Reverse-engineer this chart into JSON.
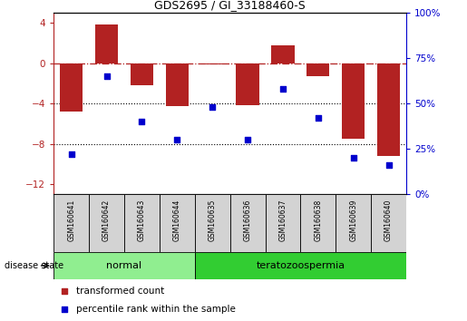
{
  "title": "GDS2695 / GI_33188460-S",
  "samples": [
    "GSM160641",
    "GSM160642",
    "GSM160643",
    "GSM160644",
    "GSM160635",
    "GSM160636",
    "GSM160637",
    "GSM160638",
    "GSM160639",
    "GSM160640"
  ],
  "bar_values": [
    -4.8,
    3.8,
    -2.2,
    -4.3,
    -0.15,
    -4.2,
    1.8,
    -1.3,
    -7.5,
    -9.2
  ],
  "dot_values": [
    22,
    65,
    40,
    30,
    48,
    30,
    58,
    42,
    20,
    16
  ],
  "ylim_left": [
    -13,
    5
  ],
  "ylim_right": [
    0,
    100
  ],
  "yticks_left": [
    -12,
    -8,
    -4,
    0,
    4
  ],
  "yticks_right": [
    0,
    25,
    50,
    75,
    100
  ],
  "bar_color": "#b22222",
  "dot_color": "#0000cd",
  "hline_y": 0,
  "dotted_lines": [
    -4,
    -8
  ],
  "groups": [
    {
      "label": "normal",
      "start": 0,
      "end": 4,
      "color": "#90ee90"
    },
    {
      "label": "teratozoospermia",
      "start": 4,
      "end": 10,
      "color": "#32cd32"
    }
  ],
  "disease_state_label": "disease state",
  "legend_bar_label": "transformed count",
  "legend_dot_label": "percentile rank within the sample",
  "right_axis_color": "#0000cd",
  "left_axis_color": "#b22222",
  "right_ytick_labels": [
    "0%",
    "25%",
    "50%",
    "75%",
    "100%"
  ],
  "right_ytick_values": [
    0,
    25,
    50,
    75,
    100
  ],
  "bg_color": "white",
  "label_bg": "#d3d3d3",
  "spine_color": "black"
}
